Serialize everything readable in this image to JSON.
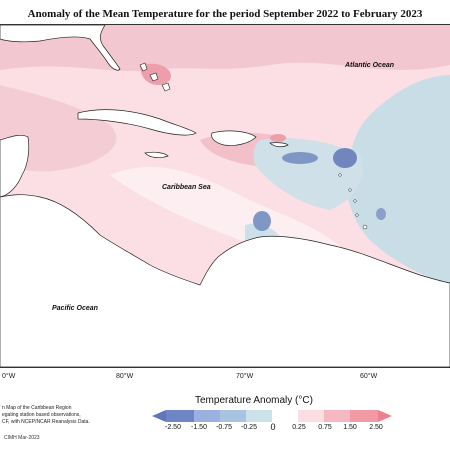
{
  "title": "Anomaly of the Mean Temperature for the period September 2022 to February 2023",
  "ocean_labels": {
    "atlantic": "Atlantic Ocean",
    "caribbean": "Caribbean Sea",
    "pacific": "Pacific Ocean"
  },
  "longitude_ticks": [
    "80°W",
    "70°W",
    "60°W"
  ],
  "longitude_tick_partial": "0°W",
  "notes": [
    "n Map of the Caribbean Region",
    "egating station based observations,",
    "CF, with NCEP/NCAR Reanalysis Data."
  ],
  "credit": "CIMH Mar-2023",
  "legend": {
    "title": "Temperature Anomaly (°C)",
    "tick_labels": [
      "-2.50",
      "-1.50",
      "-0.75",
      "-0.25",
      "0",
      "0.25",
      "0.75",
      "1.50",
      "2.50"
    ],
    "colors": [
      "#6f86c6",
      "#9db0e2",
      "#a9c4df",
      "#cde1ea",
      "#ffffff",
      "#fbdde3",
      "#f4b8c3",
      "#f19aa6",
      "#ee7f8c"
    ]
  },
  "colors": {
    "land": "#ffffff",
    "base_anomaly": "#fbdfe5",
    "warm_anomaly": "#f1c0c9",
    "cool_anomaly": "#c9dde7",
    "cold_anomaly": "#7f97c4"
  }
}
